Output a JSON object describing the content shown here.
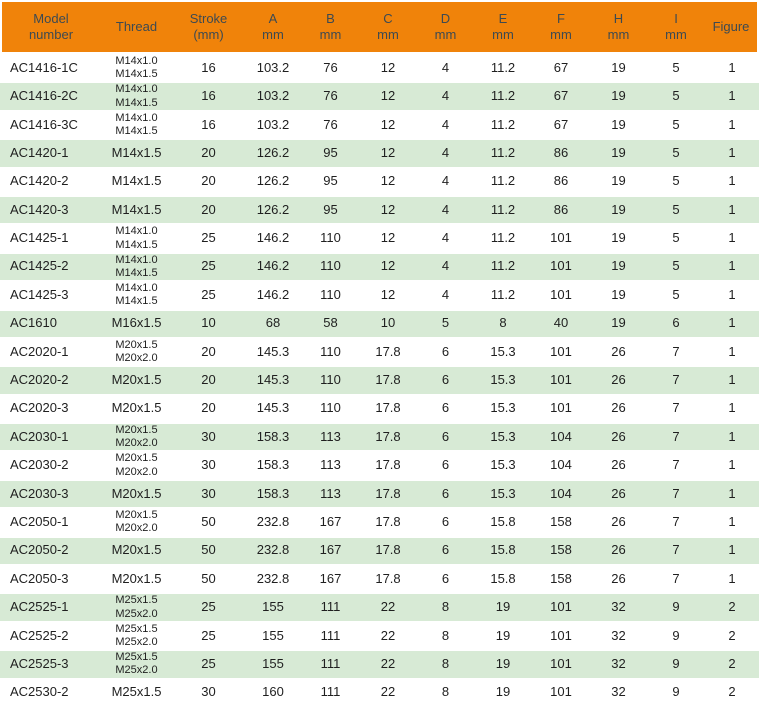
{
  "chart_data": {
    "type": "table",
    "legend": "none",
    "grid": "alternating-row-shading",
    "columns": [
      {
        "id": "model",
        "header_lines": [
          "Model",
          "number"
        ]
      },
      {
        "id": "thread",
        "header_lines": [
          "Thread"
        ]
      },
      {
        "id": "stroke",
        "header_lines": [
          "Stroke",
          "(mm)"
        ]
      },
      {
        "id": "a",
        "header_lines": [
          "A",
          "mm"
        ]
      },
      {
        "id": "b",
        "header_lines": [
          "B",
          "mm"
        ]
      },
      {
        "id": "c",
        "header_lines": [
          "C",
          "mm"
        ]
      },
      {
        "id": "d",
        "header_lines": [
          "D",
          "mm"
        ]
      },
      {
        "id": "e",
        "header_lines": [
          "E",
          "mm"
        ]
      },
      {
        "id": "f",
        "header_lines": [
          "F",
          "mm"
        ]
      },
      {
        "id": "h",
        "header_lines": [
          "H",
          "mm"
        ]
      },
      {
        "id": "i",
        "header_lines": [
          "I",
          "mm"
        ]
      },
      {
        "id": "figure",
        "header_lines": [
          "Figure"
        ]
      }
    ],
    "rows": [
      {
        "model": "AC1416-1C",
        "thread": [
          "M14x1.0",
          "M14x1.5"
        ],
        "stroke": "16",
        "a": "103.2",
        "b": "76",
        "c": "12",
        "d": "4",
        "e": "11.2",
        "f": "67",
        "h": "19",
        "i": "5",
        "figure": "1"
      },
      {
        "model": "AC1416-2C",
        "thread": [
          "M14x1.0",
          "M14x1.5"
        ],
        "stroke": "16",
        "a": "103.2",
        "b": "76",
        "c": "12",
        "d": "4",
        "e": "11.2",
        "f": "67",
        "h": "19",
        "i": "5",
        "figure": "1"
      },
      {
        "model": "AC1416-3C",
        "thread": [
          "M14x1.0",
          "M14x1.5"
        ],
        "stroke": "16",
        "a": "103.2",
        "b": "76",
        "c": "12",
        "d": "4",
        "e": "11.2",
        "f": "67",
        "h": "19",
        "i": "5",
        "figure": "1"
      },
      {
        "model": "AC1420-1",
        "thread": [
          "M14x1.5"
        ],
        "stroke": "20",
        "a": "126.2",
        "b": "95",
        "c": "12",
        "d": "4",
        "e": "11.2",
        "f": "86",
        "h": "19",
        "i": "5",
        "figure": "1"
      },
      {
        "model": "AC1420-2",
        "thread": [
          "M14x1.5"
        ],
        "stroke": "20",
        "a": "126.2",
        "b": "95",
        "c": "12",
        "d": "4",
        "e": "11.2",
        "f": "86",
        "h": "19",
        "i": "5",
        "figure": "1"
      },
      {
        "model": "AC1420-3",
        "thread": [
          "M14x1.5"
        ],
        "stroke": "20",
        "a": "126.2",
        "b": "95",
        "c": "12",
        "d": "4",
        "e": "11.2",
        "f": "86",
        "h": "19",
        "i": "5",
        "figure": "1"
      },
      {
        "model": "AC1425-1",
        "thread": [
          "M14x1.0",
          "M14x1.5"
        ],
        "stroke": "25",
        "a": "146.2",
        "b": "110",
        "c": "12",
        "d": "4",
        "e": "11.2",
        "f": "101",
        "h": "19",
        "i": "5",
        "figure": "1"
      },
      {
        "model": "AC1425-2",
        "thread": [
          "M14x1.0",
          "M14x1.5"
        ],
        "stroke": "25",
        "a": "146.2",
        "b": "110",
        "c": "12",
        "d": "4",
        "e": "11.2",
        "f": "101",
        "h": "19",
        "i": "5",
        "figure": "1"
      },
      {
        "model": "AC1425-3",
        "thread": [
          "M14x1.0",
          "M14x1.5"
        ],
        "stroke": "25",
        "a": "146.2",
        "b": "110",
        "c": "12",
        "d": "4",
        "e": "11.2",
        "f": "101",
        "h": "19",
        "i": "5",
        "figure": "1"
      },
      {
        "model": "AC1610",
        "thread": [
          "M16x1.5"
        ],
        "stroke": "10",
        "a": "68",
        "b": "58",
        "c": "10",
        "d": "5",
        "e": "8",
        "f": "40",
        "h": "19",
        "i": "6",
        "figure": "1"
      },
      {
        "model": "AC2020-1",
        "thread": [
          "M20x1.5",
          "M20x2.0"
        ],
        "stroke": "20",
        "a": "145.3",
        "b": "110",
        "c": "17.8",
        "d": "6",
        "e": "15.3",
        "f": "101",
        "h": "26",
        "i": "7",
        "figure": "1"
      },
      {
        "model": "AC2020-2",
        "thread": [
          "M20x1.5"
        ],
        "stroke": "20",
        "a": "145.3",
        "b": "110",
        "c": "17.8",
        "d": "6",
        "e": "15.3",
        "f": "101",
        "h": "26",
        "i": "7",
        "figure": "1"
      },
      {
        "model": "AC2020-3",
        "thread": [
          "M20x1.5"
        ],
        "stroke": "20",
        "a": "145.3",
        "b": "110",
        "c": "17.8",
        "d": "6",
        "e": "15.3",
        "f": "101",
        "h": "26",
        "i": "7",
        "figure": "1"
      },
      {
        "model": "AC2030-1",
        "thread": [
          "M20x1.5",
          "M20x2.0"
        ],
        "stroke": "30",
        "a": "158.3",
        "b": "113",
        "c": "17.8",
        "d": "6",
        "e": "15.3",
        "f": "104",
        "h": "26",
        "i": "7",
        "figure": "1"
      },
      {
        "model": "AC2030-2",
        "thread": [
          "M20x1.5",
          "M20x2.0"
        ],
        "stroke": "30",
        "a": "158.3",
        "b": "113",
        "c": "17.8",
        "d": "6",
        "e": "15.3",
        "f": "104",
        "h": "26",
        "i": "7",
        "figure": "1"
      },
      {
        "model": "AC2030-3",
        "thread": [
          "M20x1.5"
        ],
        "stroke": "30",
        "a": "158.3",
        "b": "113",
        "c": "17.8",
        "d": "6",
        "e": "15.3",
        "f": "104",
        "h": "26",
        "i": "7",
        "figure": "1"
      },
      {
        "model": "AC2050-1",
        "thread": [
          "M20x1.5",
          "M20x2.0"
        ],
        "stroke": "50",
        "a": "232.8",
        "b": "167",
        "c": "17.8",
        "d": "6",
        "e": "15.8",
        "f": "158",
        "h": "26",
        "i": "7",
        "figure": "1"
      },
      {
        "model": "AC2050-2",
        "thread": [
          "M20x1.5"
        ],
        "stroke": "50",
        "a": "232.8",
        "b": "167",
        "c": "17.8",
        "d": "6",
        "e": "15.8",
        "f": "158",
        "h": "26",
        "i": "7",
        "figure": "1"
      },
      {
        "model": "AC2050-3",
        "thread": [
          "M20x1.5"
        ],
        "stroke": "50",
        "a": "232.8",
        "b": "167",
        "c": "17.8",
        "d": "6",
        "e": "15.8",
        "f": "158",
        "h": "26",
        "i": "7",
        "figure": "1"
      },
      {
        "model": "AC2525-1",
        "thread": [
          "M25x1.5",
          "M25x2.0"
        ],
        "stroke": "25",
        "a": "155",
        "b": "111",
        "c": "22",
        "d": "8",
        "e": "19",
        "f": "101",
        "h": "32",
        "i": "9",
        "figure": "2"
      },
      {
        "model": "AC2525-2",
        "thread": [
          "M25x1.5",
          "M25x2.0"
        ],
        "stroke": "25",
        "a": "155",
        "b": "111",
        "c": "22",
        "d": "8",
        "e": "19",
        "f": "101",
        "h": "32",
        "i": "9",
        "figure": "2"
      },
      {
        "model": "AC2525-3",
        "thread": [
          "M25x1.5",
          "M25x2.0"
        ],
        "stroke": "25",
        "a": "155",
        "b": "111",
        "c": "22",
        "d": "8",
        "e": "19",
        "f": "101",
        "h": "32",
        "i": "9",
        "figure": "2"
      },
      {
        "model": "AC2530-2",
        "thread": [
          "M25x1.5"
        ],
        "stroke": "30",
        "a": "160",
        "b": "111",
        "c": "22",
        "d": "8",
        "e": "19",
        "f": "101",
        "h": "32",
        "i": "9",
        "figure": "2"
      }
    ]
  },
  "style": {
    "header_bg": "#F0830A",
    "header_text": "#3D4A52",
    "row_alt_bg": "#D7EAD5",
    "body_text": "#1F1F1F",
    "separator": "#FFFFFF"
  }
}
